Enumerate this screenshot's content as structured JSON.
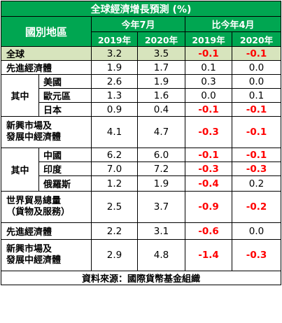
{
  "title": "全球經濟增長預測 (%)",
  "header": {
    "region_label": "國別地區",
    "group_current": "今年7月",
    "group_change": "比今年4月",
    "years": [
      "2019年",
      "2020年",
      "2019年",
      "2020年"
    ]
  },
  "rows": {
    "world": {
      "label": "全球",
      "v2019": "3.2",
      "v2020": "3.5",
      "c2019": "-0.1",
      "c2020": "-0.1"
    },
    "advanced": {
      "label": "先進經濟體",
      "v2019": "1.9",
      "v2020": "1.7",
      "c2019": "0.1",
      "c2020": "0.0"
    },
    "group1_label": "其中",
    "us": {
      "label": "美國",
      "v2019": "2.6",
      "v2020": "1.9",
      "c2019": "0.3",
      "c2020": "0.0"
    },
    "euro": {
      "label": "歐元區",
      "v2019": "1.3",
      "v2020": "1.6",
      "c2019": "0.0",
      "c2020": "0.1"
    },
    "japan": {
      "label": "日本",
      "v2019": "0.9",
      "v2020": "0.4",
      "c2019": "-0.1",
      "c2020": "-0.1"
    },
    "emerging": {
      "label_line1": "新興市場及",
      "label_line2": "發展中經濟體",
      "v2019": "4.1",
      "v2020": "4.7",
      "c2019": "-0.3",
      "c2020": "-0.1"
    },
    "group2_label": "其中",
    "china": {
      "label": "中國",
      "v2019": "6.2",
      "v2020": "6.0",
      "c2019": "-0.1",
      "c2020": "-0.1"
    },
    "india": {
      "label": "印度",
      "v2019": "7.0",
      "v2020": "7.2",
      "c2019": "-0.3",
      "c2020": "-0.3"
    },
    "russia": {
      "label": "俄羅斯",
      "v2019": "1.2",
      "v2020": "1.9",
      "c2019": "-0.4",
      "c2020": "0.2"
    },
    "trade": {
      "label_line1": "世界貿易總量",
      "label_line2": "（貨物及服務）",
      "v2019": "2.5",
      "v2020": "3.7",
      "c2019": "-0.9",
      "c2020": "-0.2"
    },
    "advanced2": {
      "label": "先進經濟體",
      "v2019": "2.2",
      "v2020": "3.1",
      "c2019": "-0.6",
      "c2020": "0.0"
    },
    "emerging2": {
      "label_line1": "新興市場及",
      "label_line2": "發展中經濟體",
      "v2019": "2.9",
      "v2020": "4.8",
      "c2019": "-1.4",
      "c2020": "-0.3"
    }
  },
  "footer": "資料來源：國際貨幣基金組織",
  "colors": {
    "header_bg": "#00a651",
    "highlight_row": "#d7e4bd",
    "negative": "#ff0000"
  }
}
